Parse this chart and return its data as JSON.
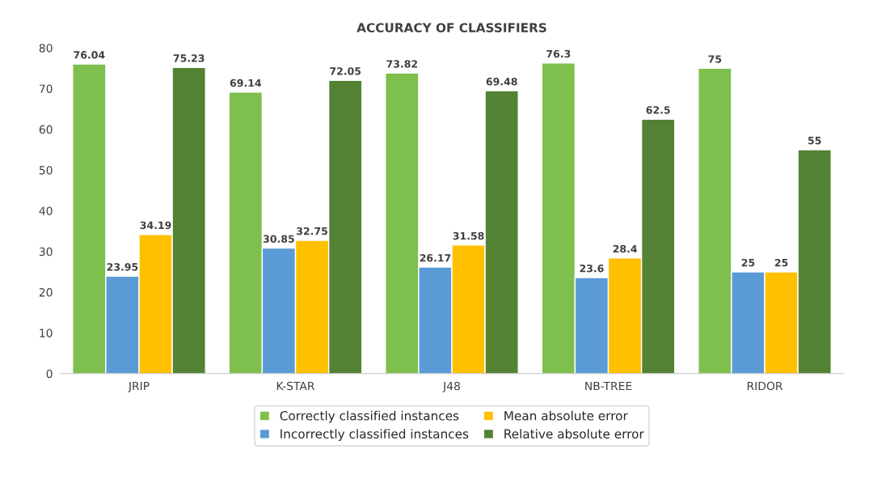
{
  "chart_data": {
    "type": "bar",
    "title": "ACCURACY OF CLASSIFIERS",
    "categories": [
      "JRIP",
      "K-STAR",
      "J48",
      "NB-TREE",
      "RIDOR"
    ],
    "series": [
      {
        "name": "Correctly classified instances",
        "color": "#7fbf4d",
        "values": [
          76.04,
          69.14,
          73.82,
          76.3,
          75
        ],
        "value_labels": [
          "76.04",
          "69.14",
          "73.82",
          "76.3",
          "75"
        ]
      },
      {
        "name": "Incorrectly classified instances",
        "color": "#5b9bd5",
        "values": [
          23.95,
          30.85,
          26.17,
          23.6,
          25
        ],
        "value_labels": [
          "23.95",
          "30.85",
          "26.17",
          "23.6",
          "25"
        ]
      },
      {
        "name": "Mean absolute error",
        "color": "#ffc000",
        "values": [
          34.19,
          32.75,
          31.58,
          28.4,
          25
        ],
        "value_labels": [
          "34.19",
          "32.75",
          "31.58",
          "28.4",
          "25"
        ]
      },
      {
        "name": "Relative absolute error",
        "color": "#548235",
        "values": [
          75.23,
          72.05,
          69.48,
          62.5,
          55
        ],
        "value_labels": [
          "75.23",
          "72.05",
          "69.48",
          "62.5",
          "55"
        ]
      }
    ],
    "ylim": [
      0,
      80
    ],
    "yticks": [
      0,
      10,
      20,
      30,
      40,
      50,
      60,
      70,
      80
    ],
    "grid": false,
    "legend": "bottom"
  }
}
